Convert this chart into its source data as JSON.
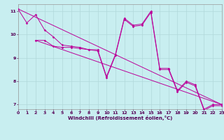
{
  "xlabel": "Windchill (Refroidissement éolien,°C)",
  "xlim": [
    0,
    23
  ],
  "ylim": [
    6.8,
    11.3
  ],
  "xticks": [
    0,
    1,
    2,
    3,
    4,
    5,
    6,
    7,
    8,
    9,
    10,
    11,
    12,
    13,
    14,
    15,
    16,
    17,
    18,
    19,
    20,
    21,
    22,
    23
  ],
  "yticks": [
    7,
    8,
    9,
    10,
    11
  ],
  "background_color": "#c8eef0",
  "grid_color": "#b0d8da",
  "line_color": "#bb0099",
  "line1_x": [
    0,
    1,
    2,
    3,
    4,
    5,
    6,
    7,
    8,
    9,
    10,
    11,
    12,
    13,
    14,
    15,
    16,
    17,
    18,
    19,
    20,
    21,
    22,
    23
  ],
  "line1_y": [
    11.1,
    10.5,
    10.85,
    10.2,
    9.9,
    9.55,
    9.5,
    9.45,
    9.35,
    9.35,
    8.2,
    9.15,
    10.7,
    10.4,
    10.45,
    11.0,
    8.55,
    8.55,
    7.6,
    8.0,
    7.85,
    6.8,
    7.0,
    7.0
  ],
  "line2_x": [
    2,
    3,
    4,
    5,
    6,
    7,
    8,
    9,
    10,
    11,
    12,
    13,
    14,
    15,
    16,
    17,
    18,
    19,
    20,
    21,
    22,
    23
  ],
  "line2_y": [
    9.75,
    9.75,
    9.5,
    9.45,
    9.45,
    9.4,
    9.35,
    9.3,
    8.15,
    9.1,
    10.65,
    10.35,
    10.4,
    10.95,
    8.5,
    8.5,
    7.55,
    7.95,
    7.8,
    6.75,
    6.95,
    6.95
  ],
  "trend1_x": [
    0,
    23
  ],
  "trend1_y": [
    11.1,
    7.0
  ],
  "trend2_x": [
    2,
    23
  ],
  "trend2_y": [
    9.75,
    7.0
  ]
}
